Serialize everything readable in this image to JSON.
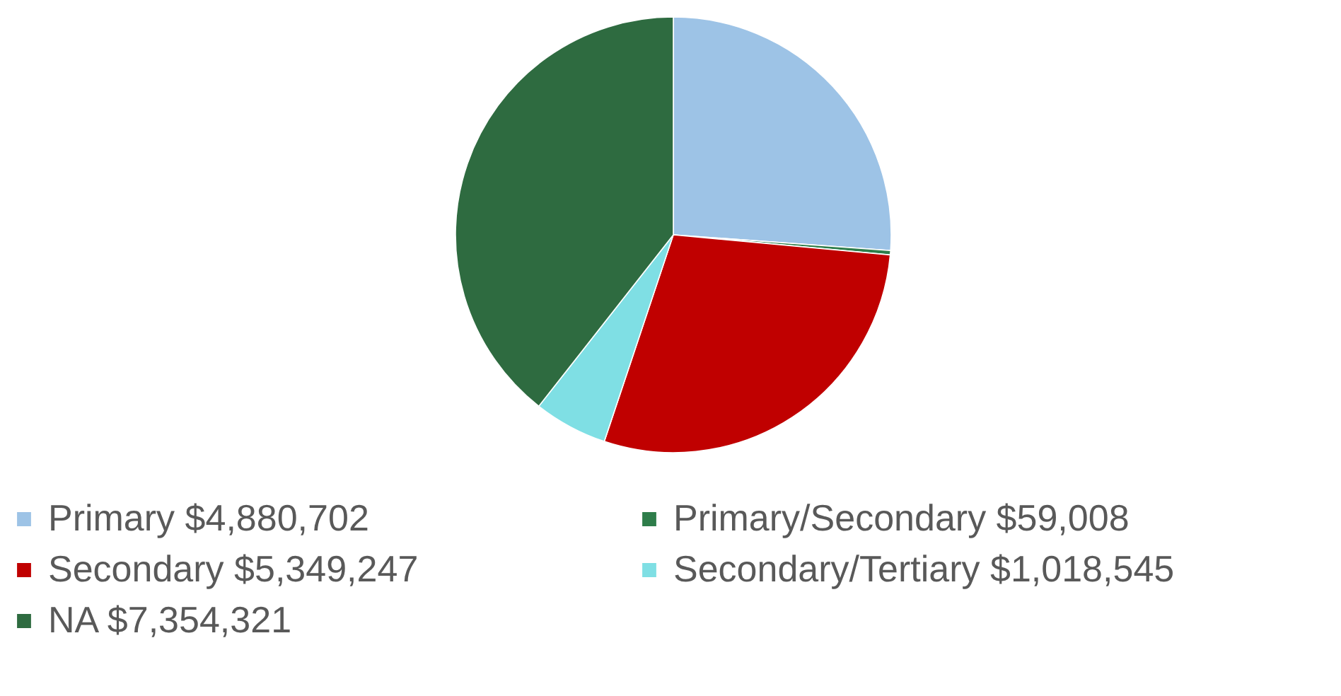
{
  "chart_data": {
    "type": "pie",
    "categories": [
      "Primary $4,880,702",
      "Primary/Secondary $59,008",
      "Secondary $5,349,247",
      "Secondary/Tertiary $1,018,545",
      "NA $7,354,321"
    ],
    "values": [
      4880702,
      59008,
      5349247,
      1018545,
      7354321
    ],
    "colors": [
      "#9dc3e6",
      "#2e7d4a",
      "#c00000",
      "#7fdfe4",
      "#2e6b40"
    ],
    "legend": "bottom"
  }
}
